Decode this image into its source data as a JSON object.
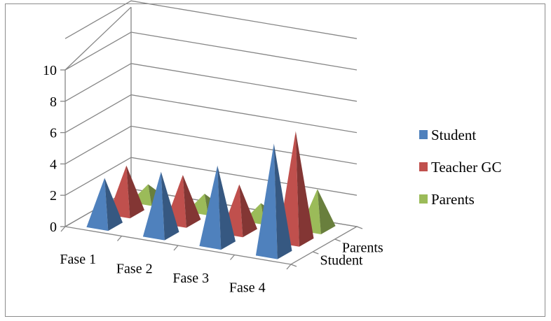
{
  "chart_data": {
    "type": "bar",
    "subtype": "3d-pyramid",
    "title": "",
    "categories": [
      "Fase 1",
      "Fase 2",
      "Fase 3",
      "Fase 4"
    ],
    "depth_categories": [
      "Student",
      "Parents"
    ],
    "series": [
      {
        "name": "Student",
        "color": "#4f81bd",
        "values": [
          3,
          4,
          5,
          7
        ]
      },
      {
        "name": "Teacher GC",
        "color": "#c0504d",
        "values": [
          3,
          3,
          3,
          7
        ]
      },
      {
        "name": "Parents",
        "color": "#9bbb59",
        "values": [
          1,
          1,
          1,
          2.5
        ]
      }
    ],
    "y_ticks": [
      "0",
      "2",
      "4",
      "6",
      "8",
      "10"
    ],
    "ylim": [
      0,
      10
    ],
    "grid": true,
    "legend_position": "right"
  }
}
